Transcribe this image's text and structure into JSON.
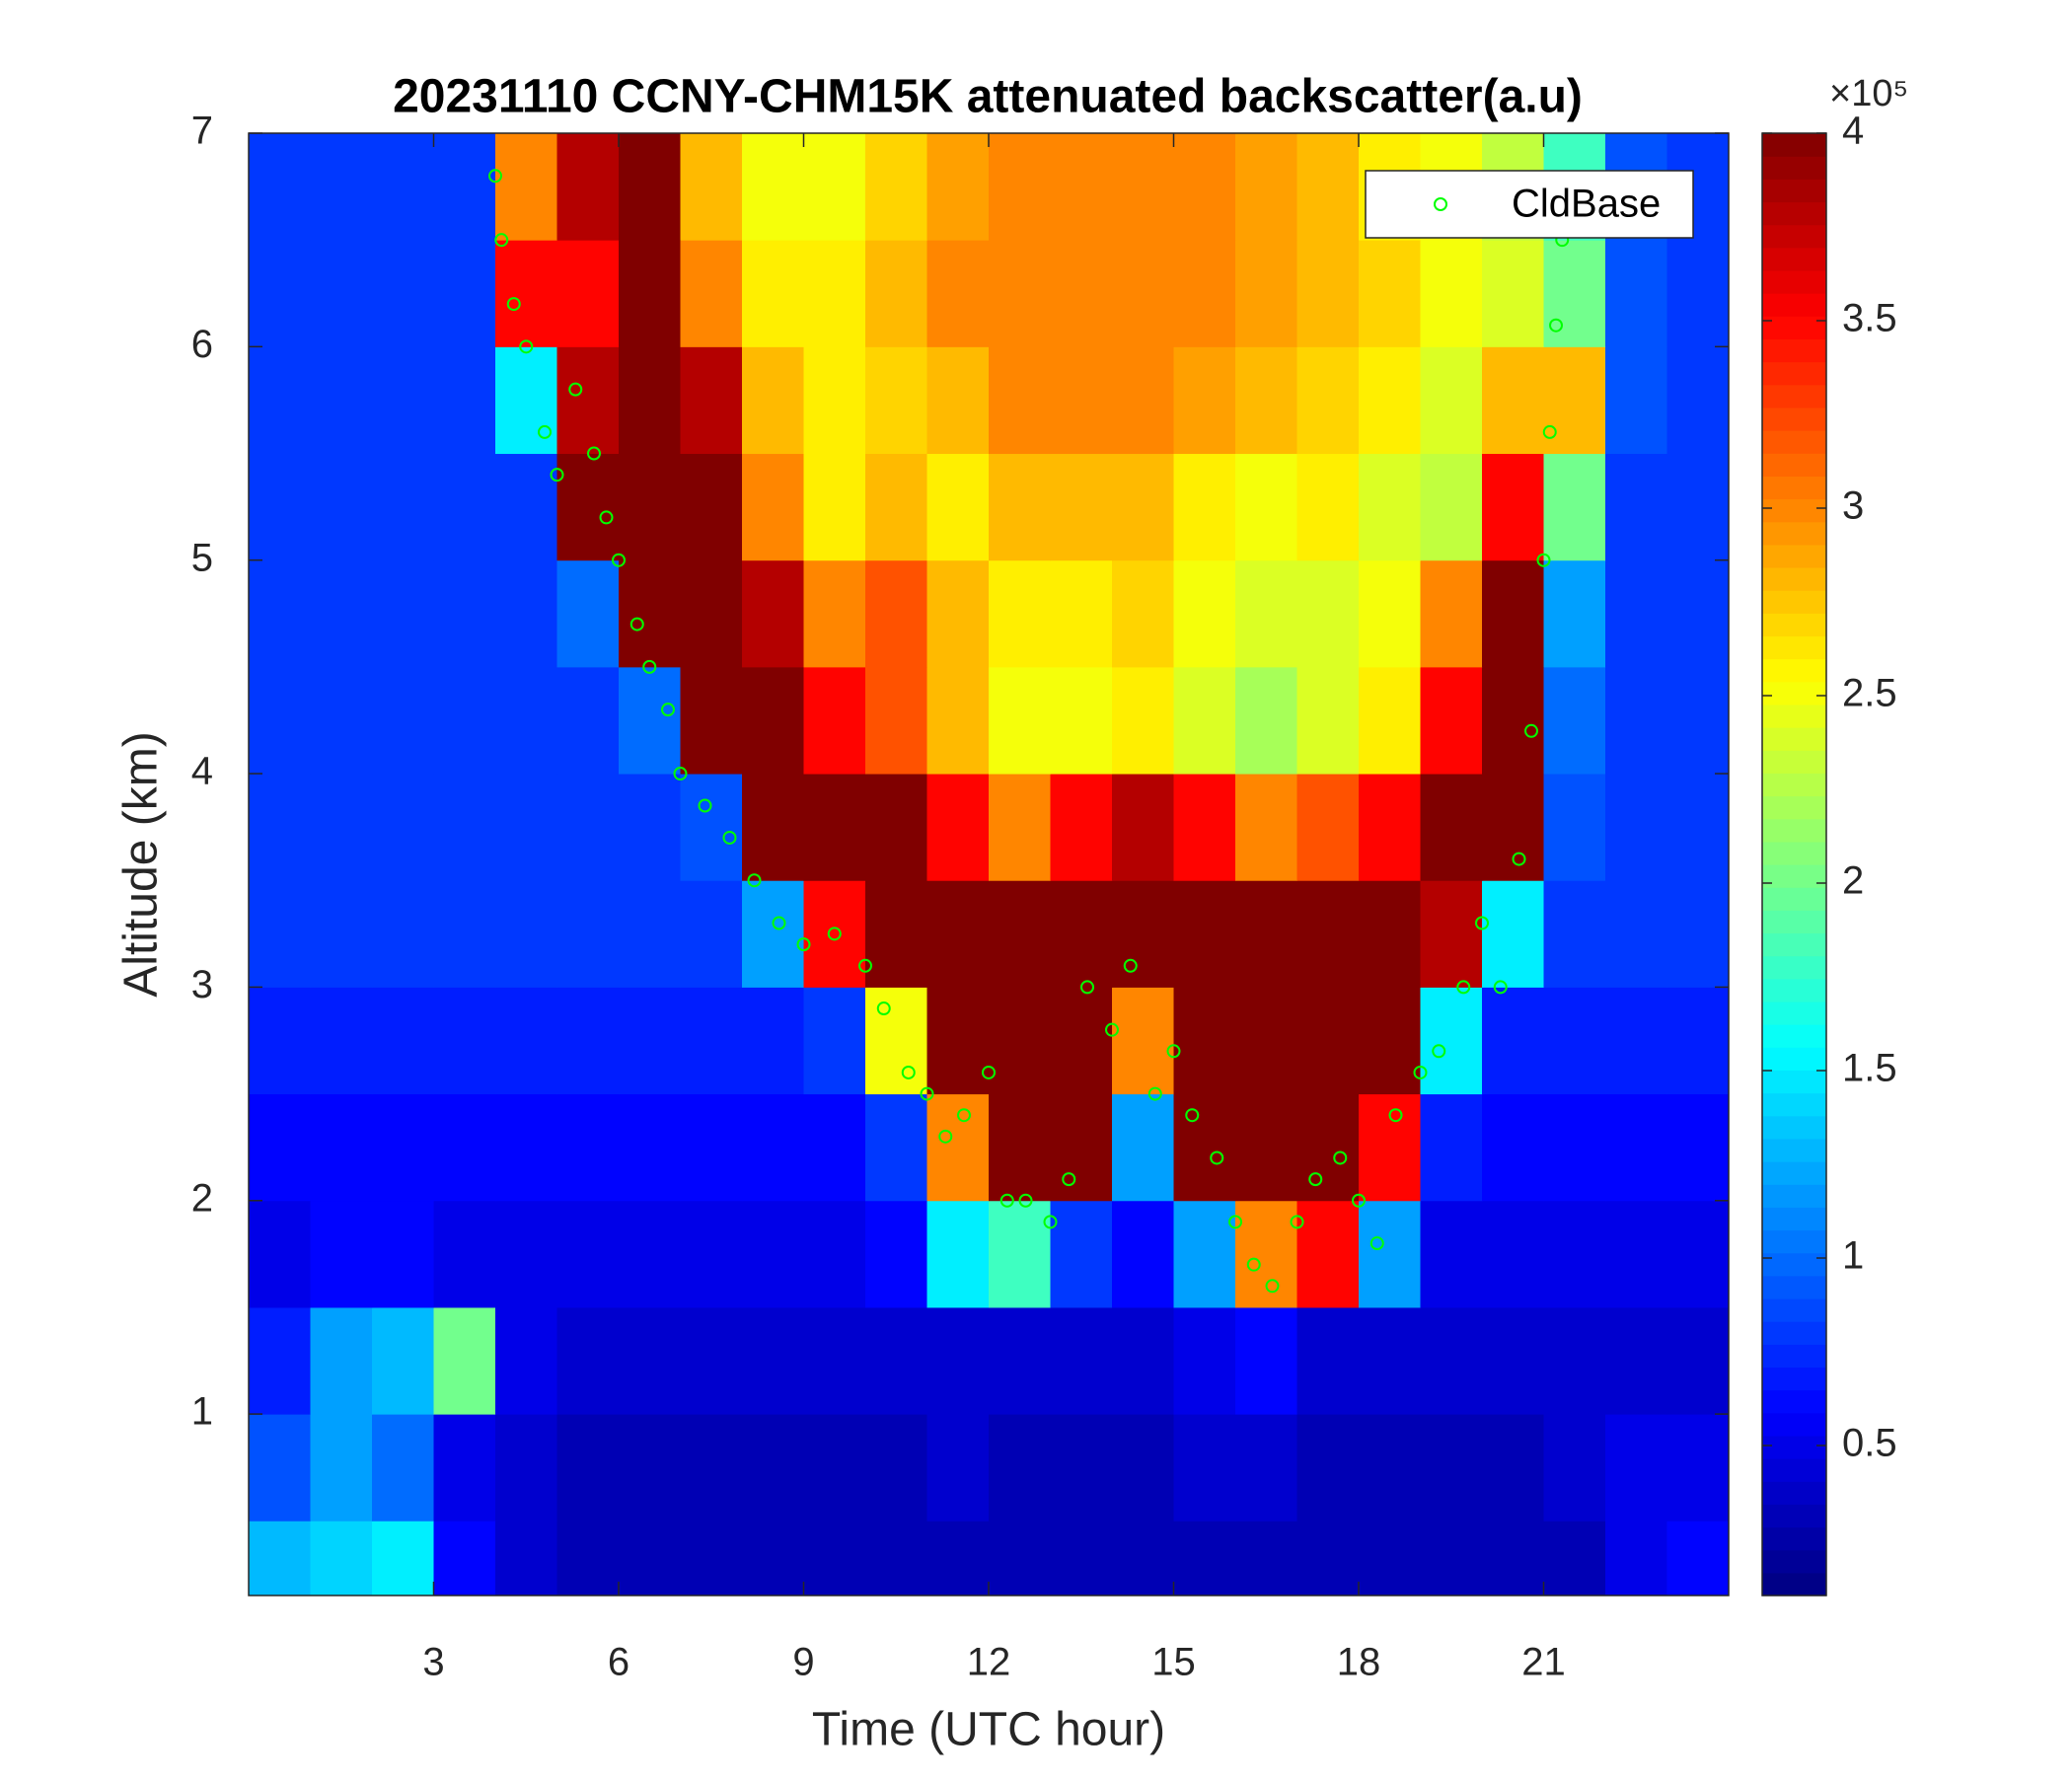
{
  "chart_data": {
    "type": "heatmap_scatter",
    "title": "20231110 CCNY-CHM15K attenuated backscatter(a.u)",
    "x_label": "Time (UTC hour)",
    "y_label": "Altitude (km)",
    "xlim": [
      0,
      24
    ],
    "ylim": [
      0.15,
      7
    ],
    "xticks": [
      3,
      6,
      9,
      12,
      15,
      18,
      21
    ],
    "yticks": [
      1,
      2,
      3,
      4,
      5,
      6,
      7
    ],
    "colormap": "jet",
    "clim": [
      0.1,
      4
    ],
    "cticks": [
      0.5,
      1,
      1.5,
      2,
      2.5,
      3,
      3.5,
      4
    ],
    "colorbar_multiplier": "×10⁵",
    "xbins": [
      0,
      1,
      2,
      3,
      4,
      5,
      6,
      7,
      8,
      9,
      10,
      11,
      12,
      13,
      14,
      15,
      16,
      17,
      18,
      19,
      20,
      21,
      22,
      23,
      24
    ],
    "ybins": [
      0.15,
      0.5,
      1,
      1.5,
      2,
      2.5,
      3,
      3.5,
      4,
      4.5,
      5,
      5.5,
      6,
      6.5,
      7
    ],
    "z": [
      [
        1.3,
        1.4,
        1.5,
        0.6,
        0.4,
        0.3,
        0.3,
        0.3,
        0.3,
        0.3,
        0.3,
        0.3,
        0.3,
        0.3,
        0.3,
        0.3,
        0.3,
        0.3,
        0.3,
        0.3,
        0.3,
        0.3,
        0.5,
        0.6
      ],
      [
        0.9,
        1.2,
        1.0,
        0.5,
        0.4,
        0.3,
        0.3,
        0.3,
        0.3,
        0.3,
        0.3,
        0.4,
        0.3,
        0.3,
        0.3,
        0.4,
        0.4,
        0.3,
        0.3,
        0.3,
        0.3,
        0.4,
        0.5,
        0.5
      ],
      [
        0.7,
        1.2,
        1.3,
        2.0,
        0.5,
        0.4,
        0.4,
        0.4,
        0.4,
        0.4,
        0.4,
        0.4,
        0.4,
        0.4,
        0.4,
        0.5,
        0.6,
        0.4,
        0.4,
        0.4,
        0.4,
        0.4,
        0.4,
        0.4
      ],
      [
        0.5,
        0.6,
        0.6,
        0.5,
        0.5,
        0.5,
        0.5,
        0.5,
        0.5,
        0.5,
        0.6,
        1.5,
        1.8,
        0.8,
        0.6,
        1.2,
        3.0,
        3.5,
        1.2,
        0.5,
        0.5,
        0.5,
        0.5,
        0.5
      ],
      [
        0.6,
        0.6,
        0.6,
        0.6,
        0.6,
        0.6,
        0.6,
        0.6,
        0.6,
        0.6,
        0.8,
        3.0,
        4,
        4,
        1.2,
        4,
        4,
        4,
        3.5,
        0.7,
        0.6,
        0.6,
        0.6,
        0.6
      ],
      [
        0.7,
        0.7,
        0.7,
        0.7,
        0.7,
        0.7,
        0.7,
        0.7,
        0.7,
        0.8,
        2.5,
        4,
        4,
        4,
        3.0,
        4,
        4,
        4,
        4,
        1.5,
        0.7,
        0.7,
        0.7,
        0.7
      ],
      [
        0.8,
        0.8,
        0.8,
        0.8,
        0.8,
        0.8,
        0.8,
        0.8,
        1.2,
        3.5,
        4,
        4,
        4,
        4,
        4,
        4,
        4,
        4,
        4,
        3.8,
        1.5,
        0.8,
        0.8,
        0.8
      ],
      [
        0.8,
        0.8,
        0.8,
        0.8,
        0.8,
        0.8,
        0.8,
        0.9,
        4,
        4,
        4,
        3.5,
        3.0,
        3.5,
        3.8,
        3.5,
        3.0,
        3.2,
        3.5,
        4,
        4,
        0.9,
        0.8,
        0.8
      ],
      [
        0.8,
        0.8,
        0.8,
        0.8,
        0.8,
        0.8,
        1.0,
        4,
        4,
        3.5,
        3.2,
        2.8,
        2.5,
        2.5,
        2.6,
        2.4,
        2.2,
        2.4,
        2.6,
        3.5,
        4,
        1.0,
        0.8,
        0.8
      ],
      [
        0.8,
        0.8,
        0.8,
        0.8,
        0.8,
        1.0,
        4,
        4,
        3.8,
        3.0,
        3.2,
        2.8,
        2.6,
        2.6,
        2.7,
        2.5,
        2.4,
        2.4,
        2.5,
        3.0,
        4,
        1.2,
        0.8,
        0.8
      ],
      [
        0.8,
        0.8,
        0.8,
        0.8,
        0.8,
        4,
        4,
        4,
        3.0,
        2.6,
        2.8,
        2.6,
        2.8,
        2.8,
        2.8,
        2.6,
        2.5,
        2.6,
        2.4,
        2.3,
        3.5,
        2.0,
        0.8,
        0.8
      ],
      [
        0.8,
        0.8,
        0.8,
        0.8,
        1.5,
        3.8,
        4,
        3.8,
        2.8,
        2.6,
        2.7,
        2.8,
        3.0,
        3.0,
        3.0,
        2.9,
        2.8,
        2.7,
        2.6,
        2.4,
        2.8,
        2.8,
        0.9,
        0.8
      ],
      [
        0.8,
        0.8,
        0.8,
        0.8,
        3.5,
        3.5,
        4,
        3.0,
        2.6,
        2.6,
        2.8,
        3.0,
        3.0,
        3.0,
        3.0,
        3.0,
        2.9,
        2.8,
        2.7,
        2.5,
        2.4,
        2.0,
        0.9,
        0.8
      ],
      [
        0.8,
        0.8,
        0.8,
        0.8,
        3.0,
        3.8,
        4,
        2.8,
        2.5,
        2.5,
        2.7,
        2.9,
        3.0,
        3.0,
        3.0,
        3.0,
        2.9,
        2.8,
        2.6,
        2.5,
        2.3,
        1.8,
        0.9,
        0.8
      ]
    ],
    "series": [
      {
        "name": "CldBase",
        "color": "#00ff00",
        "x": [
          4.0,
          4.1,
          4.3,
          4.5,
          4.8,
          5.0,
          5.3,
          5.6,
          5.8,
          6.0,
          6.3,
          6.5,
          6.8,
          7.0,
          7.4,
          7.8,
          8.2,
          8.6,
          9.0,
          9.5,
          10.0,
          10.3,
          10.7,
          11.0,
          11.3,
          11.6,
          12.0,
          12.3,
          12.6,
          13.0,
          13.3,
          13.6,
          14.0,
          14.3,
          14.7,
          15.0,
          15.3,
          15.7,
          16.0,
          16.3,
          16.6,
          17.0,
          17.3,
          17.7,
          18.0,
          18.3,
          18.6,
          19.0,
          19.3,
          19.7,
          20.0,
          20.3,
          20.6,
          20.8,
          21.0,
          21.1,
          21.2,
          21.3
        ],
        "values": [
          6.8,
          6.5,
          6.2,
          6.0,
          5.6,
          5.4,
          5.8,
          5.5,
          5.2,
          5.0,
          4.7,
          4.5,
          4.3,
          4.0,
          3.85,
          3.7,
          3.5,
          3.3,
          3.2,
          3.25,
          3.1,
          2.9,
          2.6,
          2.5,
          2.3,
          2.4,
          2.6,
          2.0,
          2.0,
          1.9,
          2.1,
          3.0,
          2.8,
          3.1,
          2.5,
          2.7,
          2.4,
          2.2,
          1.9,
          1.7,
          1.6,
          1.9,
          2.1,
          2.2,
          2.0,
          1.8,
          2.4,
          2.6,
          2.7,
          3.0,
          3.3,
          3.0,
          3.6,
          4.2,
          5.0,
          5.6,
          6.1,
          6.5
        ]
      }
    ],
    "legend": "northeast"
  }
}
